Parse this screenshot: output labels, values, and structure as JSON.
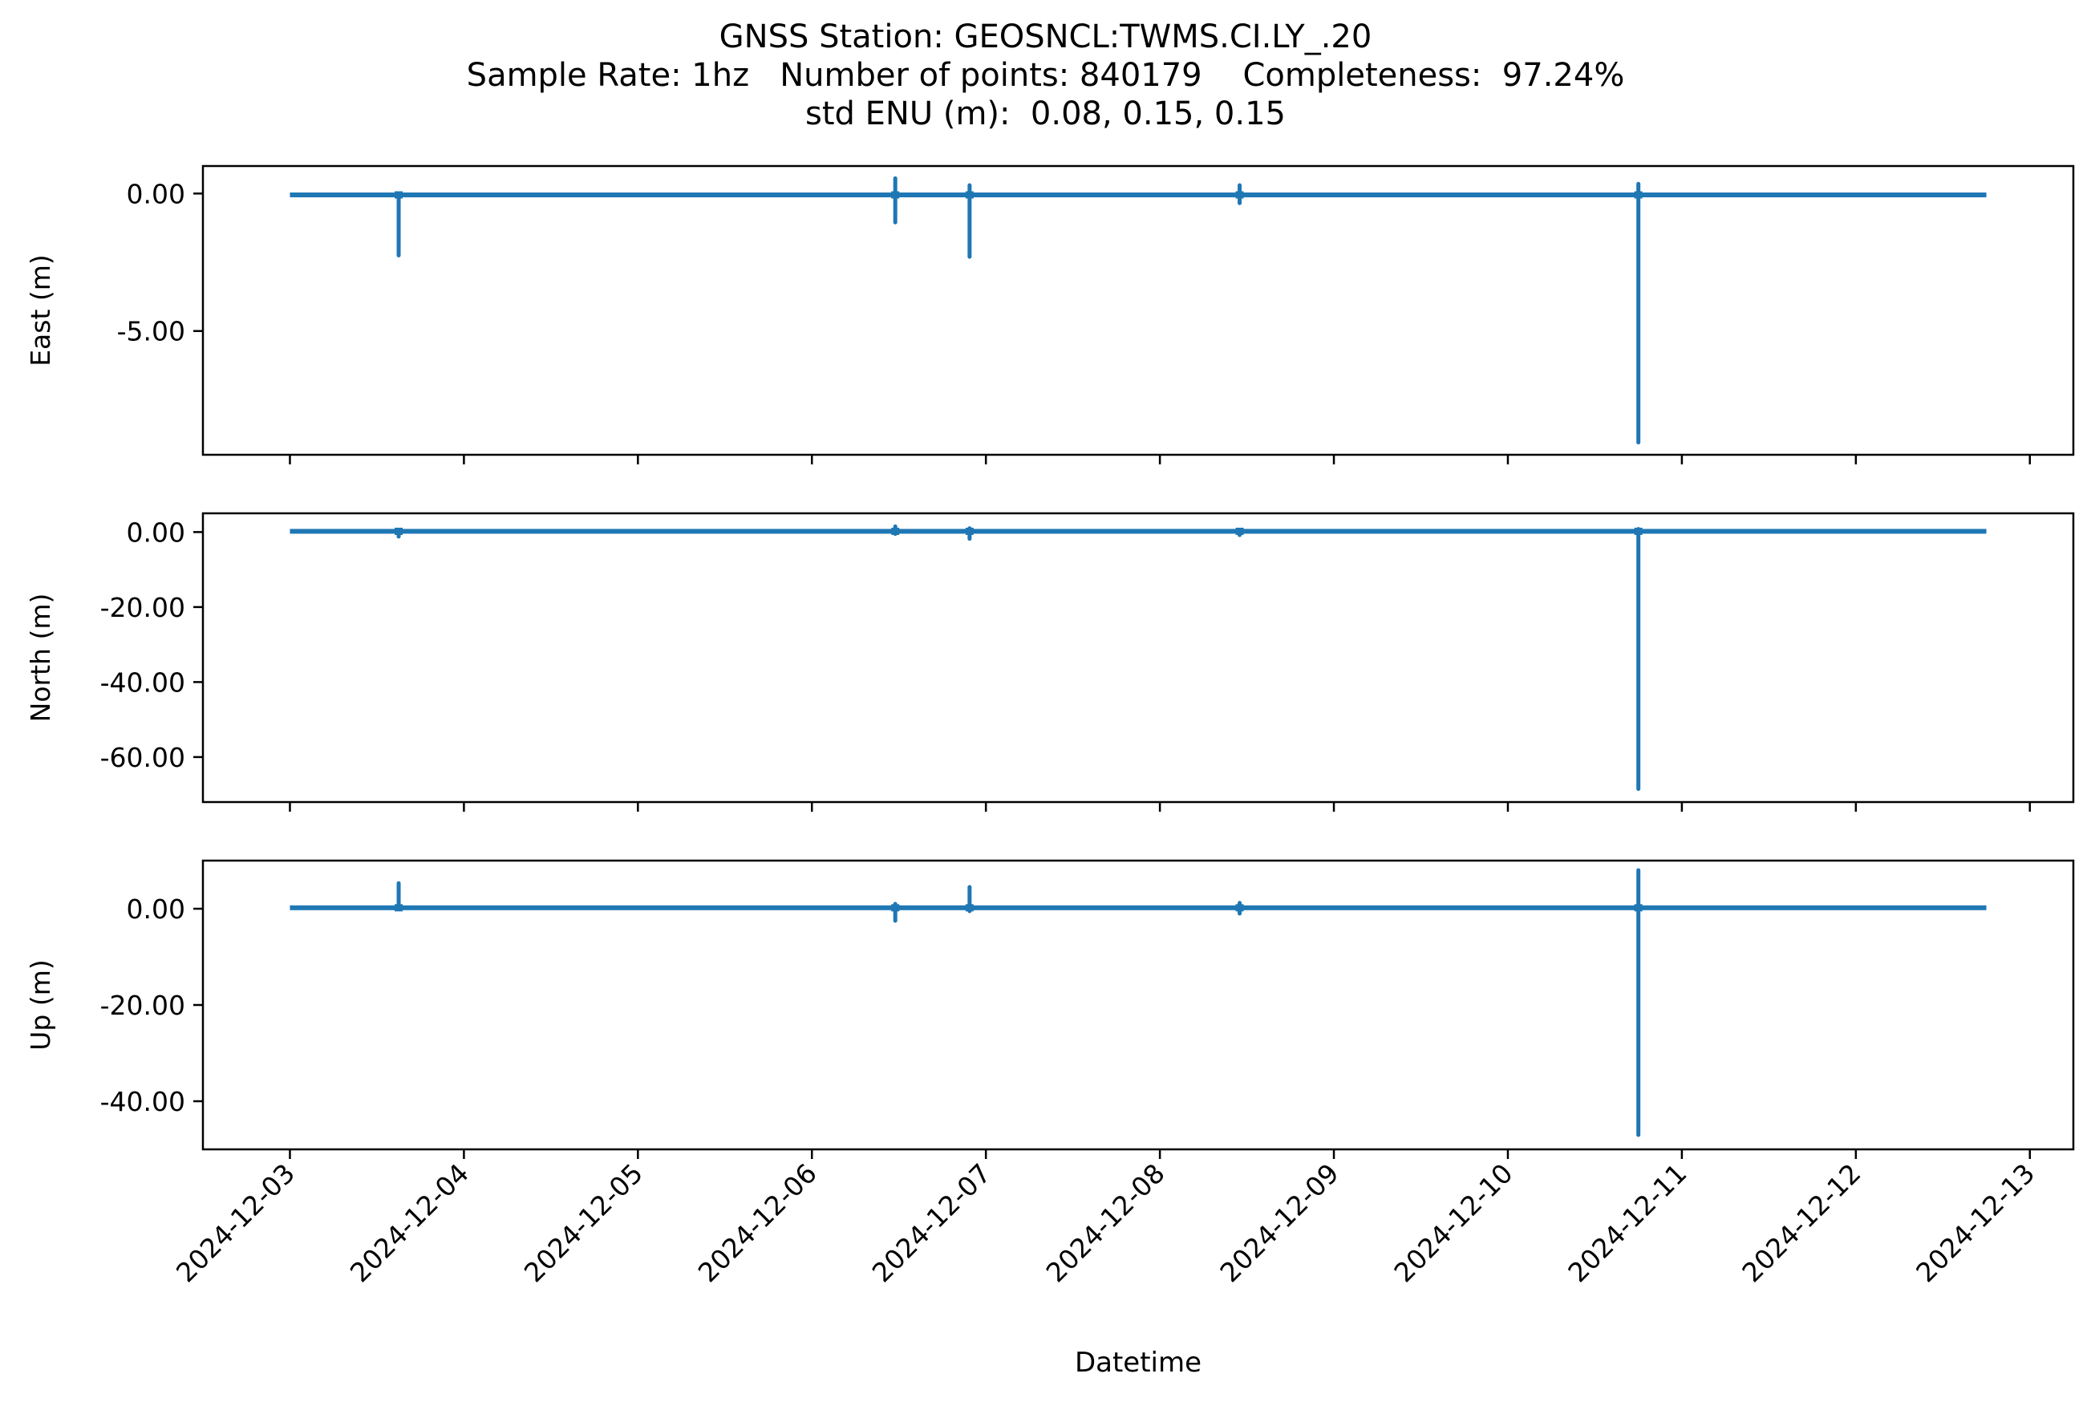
{
  "title": {
    "line1": "GNSS Station: GEOSNCL:TWMS.CI.LY_.20",
    "line2": "Sample Rate: 1hz   Number of points: 840179    Completeness:  97.24%",
    "line3": "std ENU (m):  0.08, 0.15, 0.15"
  },
  "chart_data": {
    "type": "line",
    "xlabel": "Datetime",
    "x_ticks": [
      "2024-12-03",
      "2024-12-04",
      "2024-12-05",
      "2024-12-06",
      "2024-12-07",
      "2024-12-08",
      "2024-12-09",
      "2024-12-10",
      "2024-12-11",
      "2024-12-12",
      "2024-12-13"
    ],
    "x_range": [
      "2024-12-02 12:00",
      "2024-12-13 06:00"
    ],
    "data_start": "2024-12-03 00:00",
    "data_end": "2024-12-12 18:00",
    "color": "#1f77b4",
    "grid": false,
    "panels": [
      {
        "ylabel": "East (m)",
        "ylim": [
          -9.5,
          1.0
        ],
        "yticks": [
          0.0,
          -5.0
        ],
        "ytick_labels": [
          "0.00",
          "-5.00"
        ],
        "baseline": -0.05,
        "spikes": [
          {
            "time": "2024-12-03 15:00",
            "min": -2.25,
            "max": 0.0
          },
          {
            "time": "2024-12-06 11:30",
            "min": -1.05,
            "max": 0.55
          },
          {
            "time": "2024-12-06 21:45",
            "min": -2.3,
            "max": 0.3
          },
          {
            "time": "2024-12-08 11:00",
            "min": -0.35,
            "max": 0.3
          },
          {
            "time": "2024-12-10 18:00",
            "min": -9.05,
            "max": 0.35
          }
        ]
      },
      {
        "ylabel": "North (m)",
        "ylim": [
          -72,
          5
        ],
        "yticks": [
          0.0,
          -20.0,
          -40.0,
          -60.0
        ],
        "ytick_labels": [
          "0.00",
          "-20.00",
          "-40.00",
          "-60.00"
        ],
        "baseline": 0.2,
        "spikes": [
          {
            "time": "2024-12-03 15:00",
            "min": -1.2,
            "max": 0.2
          },
          {
            "time": "2024-12-06 11:30",
            "min": -0.5,
            "max": 1.5
          },
          {
            "time": "2024-12-06 21:45",
            "min": -1.8,
            "max": 1.0
          },
          {
            "time": "2024-12-08 11:00",
            "min": -0.8,
            "max": 0.6
          },
          {
            "time": "2024-12-10 18:00",
            "min": -68.5,
            "max": 0.8
          }
        ]
      },
      {
        "ylabel": "Up (m)",
        "ylim": [
          -50,
          10
        ],
        "yticks": [
          0.0,
          -20.0,
          -40.0
        ],
        "ytick_labels": [
          "0.00",
          "-20.00",
          "-40.00"
        ],
        "baseline": 0.2,
        "spikes": [
          {
            "time": "2024-12-03 15:00",
            "min": 0.0,
            "max": 5.3
          },
          {
            "time": "2024-12-06 11:30",
            "min": -2.5,
            "max": 1.0
          },
          {
            "time": "2024-12-06 21:45",
            "min": -0.5,
            "max": 4.5
          },
          {
            "time": "2024-12-08 11:00",
            "min": -1.0,
            "max": 1.2
          },
          {
            "time": "2024-12-10 18:00",
            "min": -47.0,
            "max": 8.0
          }
        ]
      }
    ]
  }
}
